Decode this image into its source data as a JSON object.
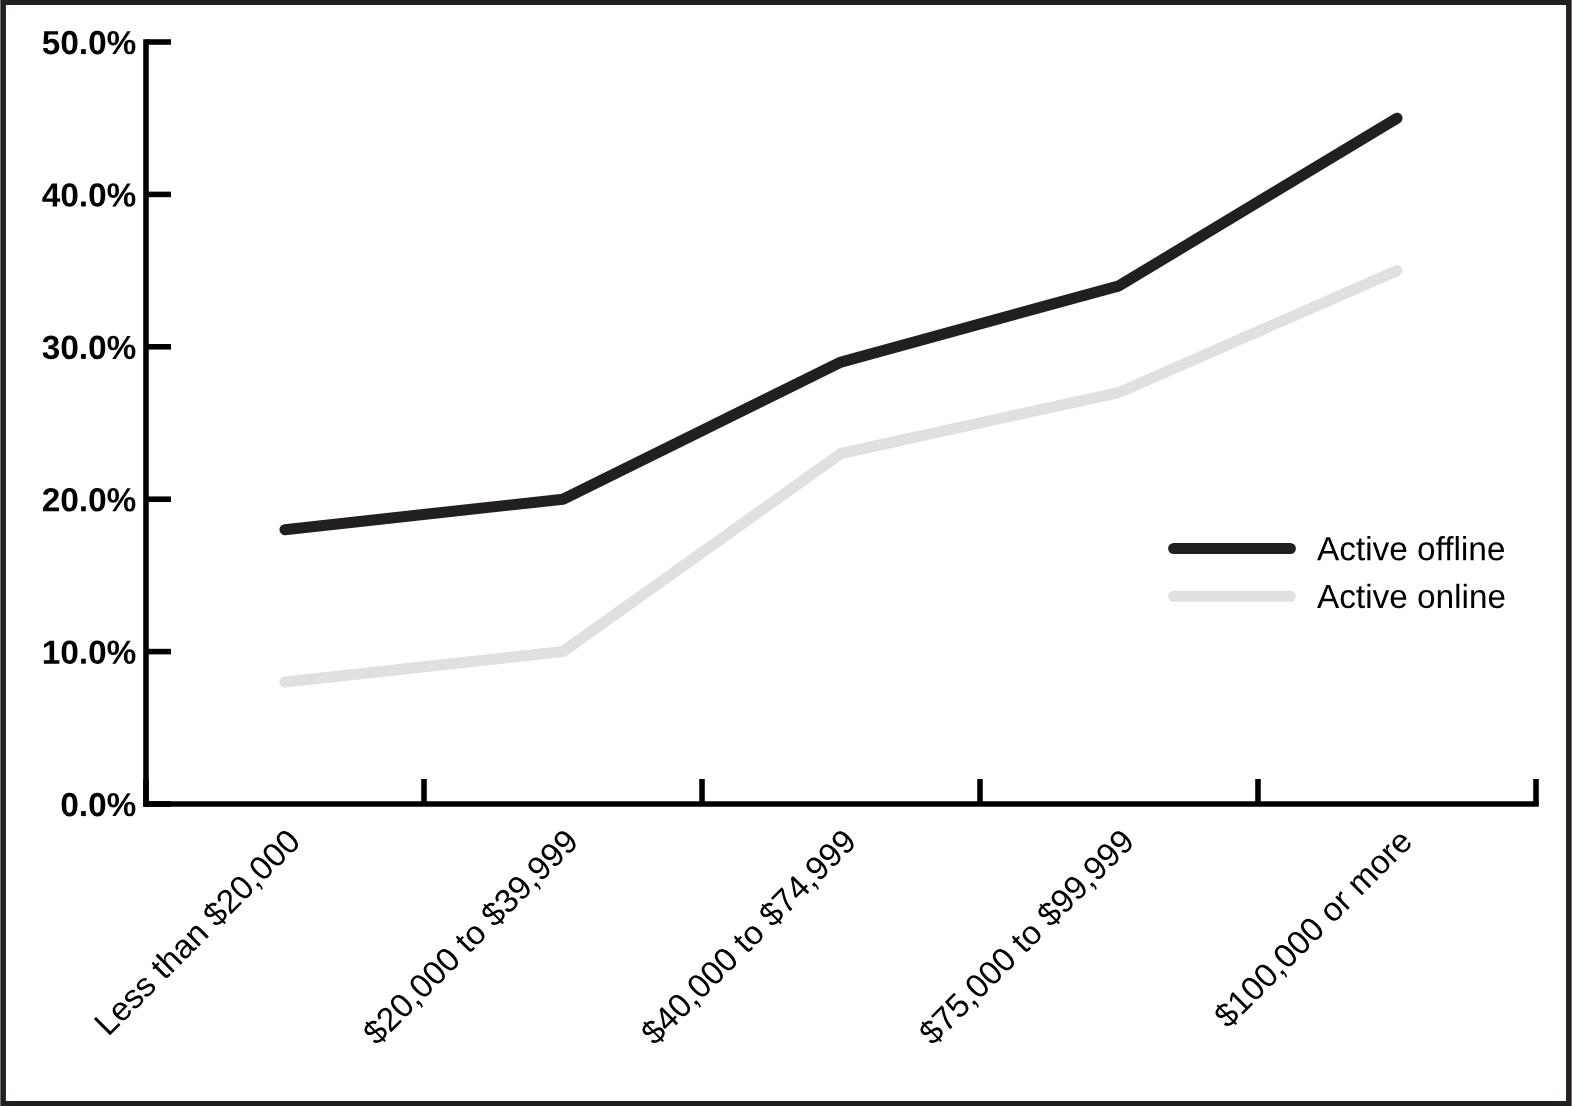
{
  "chart_data": {
    "type": "line",
    "categories": [
      "Less than $20,000",
      "$20,000 to $39,999",
      "$40,000 to $74,999",
      "$75,000 to $99,999",
      "$100,000 or more"
    ],
    "series": [
      {
        "name": "Active offline",
        "color": "#231f20",
        "values": [
          18,
          20,
          29,
          34,
          45
        ]
      },
      {
        "name": "Active online",
        "color": "#e0e0e0",
        "values": [
          8,
          10,
          23,
          27,
          35
        ]
      }
    ],
    "ylim": [
      0,
      50
    ],
    "yticks": [
      {
        "value": 0,
        "label": "0.0%"
      },
      {
        "value": 10,
        "label": "10.0%"
      },
      {
        "value": 20,
        "label": "20.0%"
      },
      {
        "value": 30,
        "label": "30.0%"
      },
      {
        "value": 40,
        "label": "40.0%"
      },
      {
        "value": 50,
        "label": "50.0%"
      }
    ],
    "grid": false,
    "legend": "right",
    "marker": "none",
    "line_style": "solid"
  }
}
